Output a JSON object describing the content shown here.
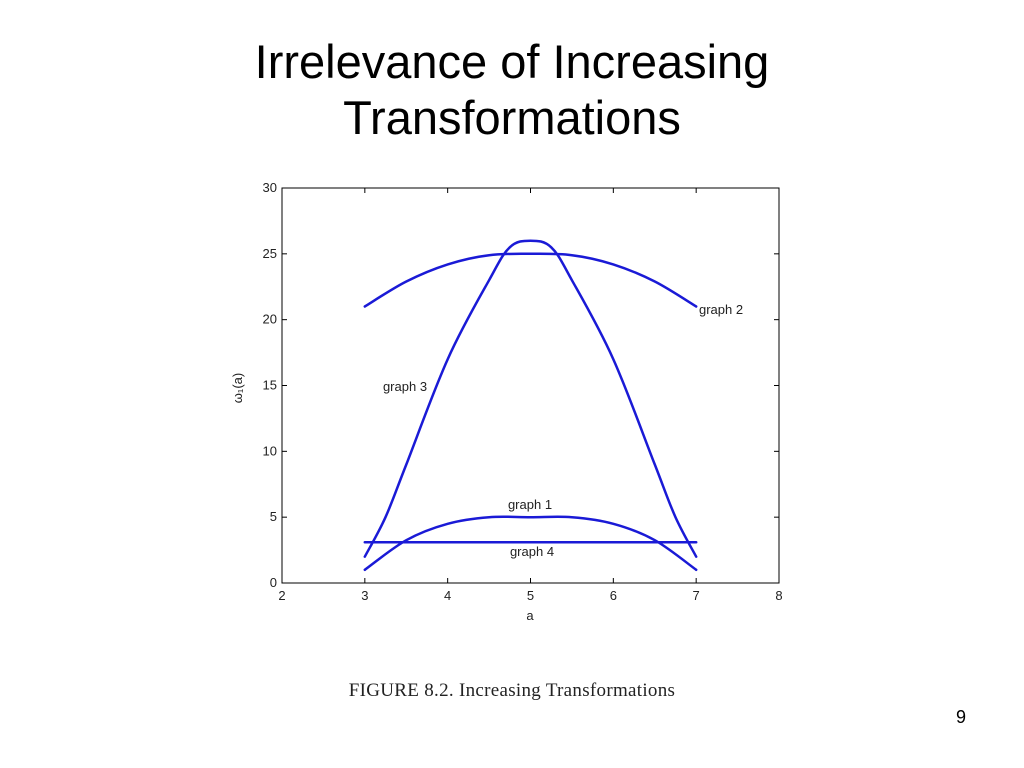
{
  "slide": {
    "title_line1": "Irrelevance of Increasing",
    "title_line2": "Transformations",
    "caption": "FIGURE 8.2. Increasing Transformations",
    "page_number": "9"
  },
  "chart_data": {
    "type": "line",
    "title": "",
    "xlabel": "a",
    "ylabel": "ω₁(a)",
    "xlim": [
      2,
      8
    ],
    "ylim": [
      0,
      30
    ],
    "xticks": [
      2,
      3,
      4,
      5,
      6,
      7,
      8
    ],
    "yticks": [
      0,
      5,
      10,
      15,
      20,
      25,
      30
    ],
    "grid": false,
    "line_color": "#1a1ad6",
    "series": [
      {
        "name": "graph 1",
        "x": [
          3,
          3.5,
          4,
          4.5,
          5,
          5.5,
          6,
          6.5,
          7
        ],
        "values": [
          1,
          3.25,
          4.5,
          5,
          5,
          5,
          4.5,
          3.25,
          1
        ]
      },
      {
        "name": "graph 2",
        "x": [
          3,
          3.5,
          4,
          4.5,
          5,
          5.5,
          6,
          6.5,
          7
        ],
        "values": [
          21,
          22.9,
          24.2,
          24.9,
          25,
          24.9,
          24.2,
          22.9,
          21
        ]
      },
      {
        "name": "graph 3",
        "x": [
          3,
          3.25,
          3.5,
          4,
          4.5,
          4.75,
          5,
          5.25,
          5.5,
          6,
          6.5,
          6.75,
          7
        ],
        "values": [
          2,
          5,
          9,
          17,
          23,
          25.5,
          26,
          25.5,
          23,
          17,
          9,
          5,
          2
        ]
      },
      {
        "name": "graph 4",
        "x": [
          3,
          7
        ],
        "values": [
          3.1,
          3.1
        ]
      }
    ]
  }
}
